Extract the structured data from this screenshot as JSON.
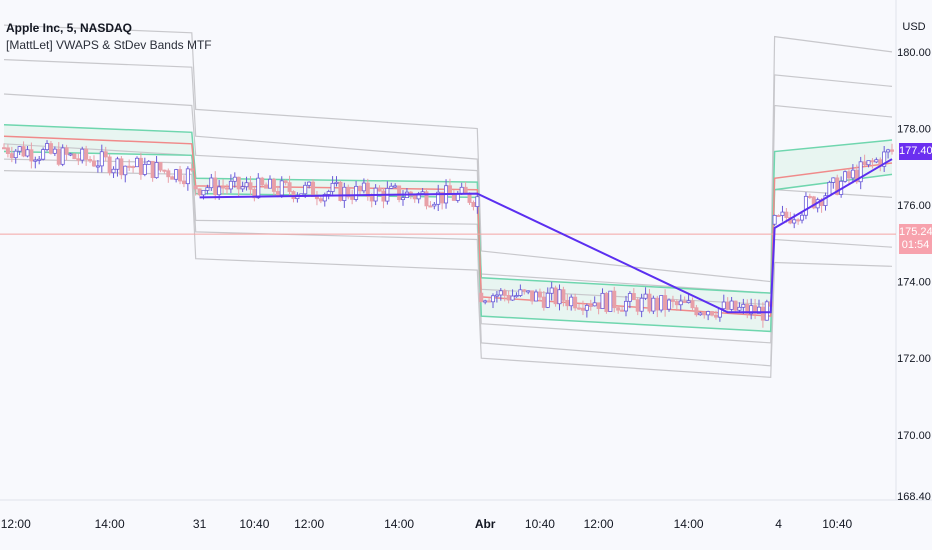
{
  "header": {
    "symbol": "Apple Inc, 5, NASDAQ",
    "indicator": "[MattLet] VWAPS & StDev Bands MTF"
  },
  "currency": "USD",
  "price_tags": {
    "last": "177.40",
    "current": "175.24",
    "countdown": "01:54"
  },
  "colors": {
    "background": "#f8f9fd",
    "band_outer": "#c8c8cc",
    "band_inner": "#6fd6ae",
    "vwap_prior": "#f08a8a",
    "vwap_current": "#5b2ff0",
    "candle_up": "#6a5bd8",
    "candle_down": "#e8a0a8",
    "last_tag": "#6b2ff0",
    "current_tag": "#f7a2ad",
    "hline": "#f5a4a4"
  },
  "chart_data": {
    "type": "line",
    "title": "Apple Inc, 5, NASDAQ",
    "xlabel": "",
    "ylabel": "USD",
    "ylim": [
      168.4,
      181.2
    ],
    "y_ticks": [
      "180.00",
      "178.00",
      "176.00",
      "174.00",
      "172.00",
      "170.00",
      "168.40"
    ],
    "y_tick_values": [
      180,
      178,
      176,
      174,
      172,
      170,
      168.4
    ],
    "x_ticks": [
      "12:00",
      "14:00",
      "31",
      "10:40",
      "12:00",
      "14:00",
      "Abr",
      "10:40",
      "12:00",
      "14:00",
      "4",
      "10:40"
    ],
    "x_tick_index": [
      3,
      27,
      50,
      64,
      78,
      101,
      123,
      137,
      152,
      175,
      198,
      213
    ],
    "bold_ticks": [
      "Abr"
    ],
    "bar_count": 228,
    "sessions": [
      {
        "start": 0,
        "end": 48,
        "close_start": 177.5,
        "close_end": 176.8
      },
      {
        "start": 49,
        "end": 121,
        "close_start": 176.5,
        "close_end": 176.2
      },
      {
        "start": 122,
        "end": 196,
        "close_start": 173.7,
        "close_end": 173.2
      },
      {
        "start": 197,
        "end": 227,
        "close_start": 175.5,
        "close_end": 177.4
      }
    ],
    "bands": {
      "outer": [
        {
          "name": "",
          "values": [
            [
              0,
              180.7
            ],
            [
              48,
              180.5
            ],
            [
              49,
              178.5
            ],
            [
              121,
              178.0
            ],
            [
              122,
              174.8
            ],
            [
              196,
              174.0
            ],
            [
              197,
              180.4
            ],
            [
              227,
              180.0
            ]
          ]
        },
        {
          "name": "",
          "values": [
            [
              0,
              179.8
            ],
            [
              48,
              179.6
            ],
            [
              49,
              177.8
            ],
            [
              121,
              177.2
            ],
            [
              122,
              174.2
            ],
            [
              196,
              173.7
            ],
            [
              197,
              179.4
            ],
            [
              227,
              179.1
            ]
          ]
        },
        {
          "name": "",
          "values": [
            [
              0,
              178.9
            ],
            [
              48,
              178.6
            ],
            [
              49,
              177.3
            ],
            [
              121,
              176.9
            ],
            [
              122,
              173.8
            ],
            [
              196,
              173.4
            ],
            [
              197,
              178.6
            ],
            [
              227,
              178.3
            ]
          ]
        },
        {
          "name": "",
          "values": [
            [
              0,
              177.6
            ],
            [
              48,
              177.3
            ],
            [
              49,
              175.6
            ],
            [
              121,
              175.5
            ],
            [
              122,
              172.9
            ],
            [
              196,
              172.4
            ],
            [
              197,
              176.4
            ],
            [
              227,
              176.2
            ]
          ]
        },
        {
          "name": "",
          "values": [
            [
              0,
              177.2
            ],
            [
              48,
              177.1
            ],
            [
              49,
              175.3
            ],
            [
              121,
              175.1
            ],
            [
              122,
              172.4
            ],
            [
              196,
              171.8
            ],
            [
              197,
              175.1
            ],
            [
              227,
              174.9
            ]
          ]
        },
        {
          "name": "",
          "values": [
            [
              0,
              176.9
            ],
            [
              48,
              176.8
            ],
            [
              49,
              174.6
            ],
            [
              121,
              174.3
            ],
            [
              122,
              172.0
            ],
            [
              196,
              171.5
            ],
            [
              197,
              174.5
            ],
            [
              227,
              174.4
            ]
          ]
        }
      ],
      "inner_upper": [
        [
          0,
          178.1
        ],
        [
          48,
          177.9
        ],
        [
          49,
          176.7
        ],
        [
          121,
          176.6
        ],
        [
          122,
          174.1
        ],
        [
          196,
          173.7
        ],
        [
          197,
          177.4
        ],
        [
          227,
          177.7
        ]
      ],
      "inner_lower": [
        [
          0,
          177.4
        ],
        [
          48,
          177.3
        ],
        [
          49,
          176.3
        ],
        [
          121,
          176.2
        ],
        [
          122,
          173.1
        ],
        [
          196,
          172.7
        ],
        [
          197,
          176.4
        ],
        [
          227,
          176.8
        ]
      ],
      "vwap_prior": [
        [
          0,
          177.8
        ],
        [
          48,
          177.6
        ],
        [
          49,
          176.5
        ],
        [
          121,
          176.4
        ],
        [
          122,
          173.6
        ],
        [
          196,
          173.1
        ],
        [
          197,
          176.7
        ],
        [
          227,
          177.1
        ]
      ],
      "vwap_current": [
        [
          50,
          176.2
        ],
        [
          121,
          176.3
        ],
        [
          185,
          173.2
        ],
        [
          196,
          173.2
        ],
        [
          197,
          175.4
        ],
        [
          227,
          177.2
        ]
      ]
    },
    "horizontal_line": 175.24,
    "last_price": 177.4,
    "current_price": 175.24
  }
}
